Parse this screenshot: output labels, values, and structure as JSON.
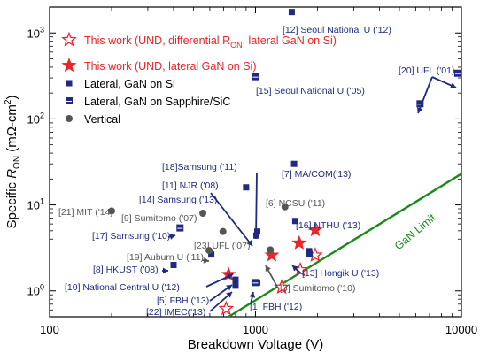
{
  "chart_data": {
    "type": "scatter",
    "x_scale": "log",
    "y_scale": "log",
    "xlim": [
      100,
      10000
    ],
    "ylim": [
      0.5,
      2000
    ],
    "xlabel": "Breakdown Voltage (V)",
    "ylabel": "Specific R_ON (mΩ-cm²)",
    "x_ticks": [
      "100",
      "1000",
      "10000"
    ],
    "y_ticks": [
      {
        "base": "10",
        "exp": "0"
      },
      {
        "base": "10",
        "exp": "1"
      },
      {
        "base": "10",
        "exp": "2"
      },
      {
        "base": "10",
        "exp": "3"
      }
    ],
    "limit_line": {
      "label": "GaN Limit",
      "x": [
        740,
        10000
      ],
      "y": [
        0.5,
        23
      ],
      "color": "#1a8a1a"
    },
    "colors": {
      "work": "#e8252a",
      "lateral": "#1f2a80",
      "vertical": "#555555",
      "ann_red": "#e8252a"
    },
    "series": [
      {
        "name": "This work (UND, differential R_ON, lateral GaN on Si)",
        "marker": "star-open",
        "points": [
          [
            720,
            0.62
          ],
          [
            1340,
            1.1
          ],
          [
            1650,
            1.75
          ],
          [
            1950,
            2.6
          ]
        ]
      },
      {
        "name": "This work (UND, lateral GaN on Si)",
        "marker": "star-filled",
        "points": [
          [
            740,
            1.55
          ],
          [
            1200,
            2.6
          ],
          [
            1630,
            3.6
          ],
          [
            1950,
            5.1
          ]
        ]
      },
      {
        "name": "Lateral, GaN on Si",
        "marker": "square-filled",
        "points": [
          [
            1500,
            1750
          ],
          [
            1540,
            30
          ],
          [
            1560,
            6.5
          ],
          [
            1020,
            4.9
          ],
          [
            1010,
            4.4
          ],
          [
            900,
            16
          ],
          [
            800,
            1.35
          ],
          [
            800,
            1.15
          ],
          [
            1020,
            1.25
          ],
          [
            1820,
            2.9
          ],
          [
            400,
            2.0
          ],
          [
            610,
            2.65
          ],
          [
            1830,
            2.7
          ]
        ]
      },
      {
        "name": "Lateral, GaN on Sapphire/SiC",
        "marker": "square-half",
        "points": [
          [
            1000,
            310
          ],
          [
            430,
            5.4
          ],
          [
            1000,
            1.25
          ],
          [
            6300,
            150
          ],
          [
            9600,
            340
          ]
        ]
      },
      {
        "name": "Vertical",
        "marker": "circle",
        "points": [
          [
            200,
            8.5
          ],
          [
            555,
            8.0
          ],
          [
            1390,
            9.5
          ],
          [
            695,
            4.9
          ],
          [
            595,
            2.95
          ],
          [
            1180,
            3.0
          ]
        ]
      }
    ],
    "annotations": [
      {
        "text": "[12] Seoul National U ('12)",
        "color": "lateral"
      },
      {
        "text": "[20] UFL ('01)",
        "color": "lateral"
      },
      {
        "text": "[15] Seoul National U ('05)",
        "color": "lateral"
      },
      {
        "text": "[18]Samsung ('11)",
        "color": "lateral"
      },
      {
        "text": "[7] MA/COM('13)",
        "color": "lateral"
      },
      {
        "text": "[11] NJR ('08)",
        "color": "lateral"
      },
      {
        "text": "[14] Samsung ('13)",
        "color": "lateral"
      },
      {
        "text": "[6] NCSU ('11)",
        "color": "vertical"
      },
      {
        "text": "[21] MIT ('14)",
        "color": "vertical"
      },
      {
        "text": "[9] Sumitomo ('07)",
        "color": "vertical"
      },
      {
        "text": "[16] NTHU ('13)",
        "color": "lateral"
      },
      {
        "text": "[17] Samsung ('10)",
        "color": "lateral"
      },
      {
        "text": "[23] UFL ('07)",
        "color": "vertical"
      },
      {
        "text": "[19] Auburn U ('11)",
        "color": "vertical"
      },
      {
        "text": "[8] HKUST ('08)",
        "color": "lateral"
      },
      {
        "text": "[13] Hongik U ('13)",
        "color": "lateral"
      },
      {
        "text": "[10] National Central U ('12)",
        "color": "lateral"
      },
      {
        "text": "[3] Sumitomo ('10)",
        "color": "vertical"
      },
      {
        "text": "[5] FBH ('13)",
        "color": "lateral"
      },
      {
        "text": "[22] IMEC('13)",
        "color": "lateral"
      },
      {
        "text": "[1] FBH ('12)",
        "color": "lateral"
      }
    ]
  }
}
